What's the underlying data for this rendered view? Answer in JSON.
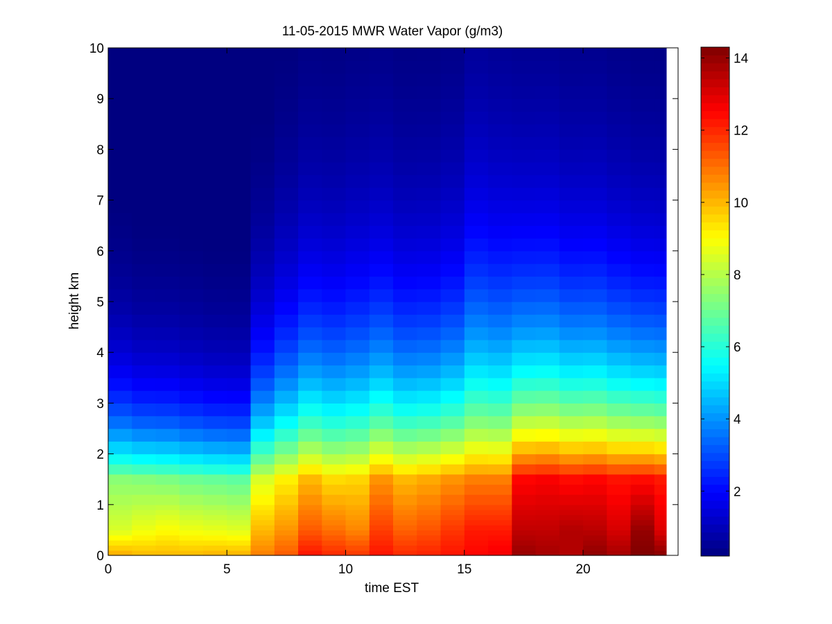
{
  "chart_data": {
    "type": "heatmap",
    "title": "11-05-2015 MWR Water Vapor (g/m3)",
    "xlabel": "time EST",
    "ylabel": "height km",
    "xlim": [
      0,
      24
    ],
    "ylim": [
      0,
      10
    ],
    "x_ticks": [
      "0",
      "5",
      "10",
      "15",
      "20"
    ],
    "y_ticks": [
      "0",
      "1",
      "2",
      "3",
      "4",
      "5",
      "6",
      "7",
      "8",
      "9",
      "10"
    ],
    "colormap": "jet",
    "color_range": [
      0.2,
      14.3
    ],
    "colorbar_ticks": [
      "2",
      "4",
      "6",
      "8",
      "10",
      "12",
      "14"
    ],
    "times_hr": [
      0.0,
      1.0,
      2.0,
      3.0,
      4.0,
      5.0,
      6.0,
      7.0,
      8.0,
      9.0,
      10.0,
      11.0,
      12.0,
      13.0,
      14.0,
      15.0,
      16.0,
      17.0,
      18.0,
      19.0,
      20.0,
      21.0,
      22.0,
      23.0
    ],
    "heights_km": [
      0,
      0.1,
      0.2,
      0.3,
      0.4,
      0.5,
      0.6,
      0.7,
      0.8,
      0.9,
      1.0,
      1.2,
      1.4,
      1.6,
      1.8,
      2.0,
      2.25,
      2.5,
      2.75,
      3.0,
      3.25,
      3.5,
      3.75,
      4.0,
      4.25,
      4.5,
      4.75,
      5.0,
      5.25,
      5.5,
      5.75,
      6.0,
      6.25,
      6.5,
      6.75,
      7.0,
      7.25,
      7.5,
      7.75,
      8.0,
      8.25,
      8.5,
      8.75,
      9.0,
      9.25,
      9.5,
      9.75
    ],
    "profile_params": [
      {
        "surface": 10.2,
        "low": 8.5,
        "mid": 7.4,
        "scale": 1.5
      },
      {
        "surface": 10.0,
        "low": 8.8,
        "mid": 7.3,
        "scale": 1.4
      },
      {
        "surface": 10.0,
        "low": 9.0,
        "mid": 7.2,
        "scale": 1.4
      },
      {
        "surface": 10.0,
        "low": 8.8,
        "mid": 7.0,
        "scale": 1.35
      },
      {
        "surface": 10.1,
        "low": 8.7,
        "mid": 6.9,
        "scale": 1.3
      },
      {
        "surface": 10.1,
        "low": 8.6,
        "mid": 6.8,
        "scale": 1.3
      },
      {
        "surface": 10.8,
        "low": 10.0,
        "mid": 8.5,
        "scale": 1.9
      },
      {
        "surface": 11.3,
        "low": 10.5,
        "mid": 9.2,
        "scale": 2.2
      },
      {
        "surface": 12.3,
        "low": 11.3,
        "mid": 10.0,
        "scale": 2.4
      },
      {
        "surface": 12.0,
        "low": 11.0,
        "mid": 9.5,
        "scale": 2.4
      },
      {
        "surface": 11.8,
        "low": 10.7,
        "mid": 9.6,
        "scale": 2.5
      },
      {
        "surface": 12.3,
        "low": 11.7,
        "mid": 10.5,
        "scale": 2.5
      },
      {
        "surface": 12.0,
        "low": 11.2,
        "mid": 10.0,
        "scale": 2.4
      },
      {
        "surface": 12.1,
        "low": 11.4,
        "mid": 10.2,
        "scale": 2.4
      },
      {
        "surface": 12.3,
        "low": 11.8,
        "mid": 10.5,
        "scale": 2.5
      },
      {
        "surface": 12.5,
        "low": 12.2,
        "mid": 10.8,
        "scale": 2.9
      },
      {
        "surface": 12.7,
        "low": 12.2,
        "mid": 10.8,
        "scale": 2.8
      },
      {
        "surface": 14.0,
        "low": 13.4,
        "mid": 12.5,
        "scale": 2.6
      },
      {
        "surface": 13.8,
        "low": 13.4,
        "mid": 12.6,
        "scale": 2.6
      },
      {
        "surface": 13.6,
        "low": 13.6,
        "mid": 12.4,
        "scale": 2.5
      },
      {
        "surface": 14.1,
        "low": 13.5,
        "mid": 12.5,
        "scale": 2.5
      },
      {
        "surface": 13.8,
        "low": 13.1,
        "mid": 12.3,
        "scale": 2.4
      },
      {
        "surface": 14.3,
        "low": 14.0,
        "mid": 12.4,
        "scale": 2.3
      },
      {
        "surface": 14.2,
        "low": 13.0,
        "mid": 12.2,
        "scale": 2.3
      }
    ]
  }
}
